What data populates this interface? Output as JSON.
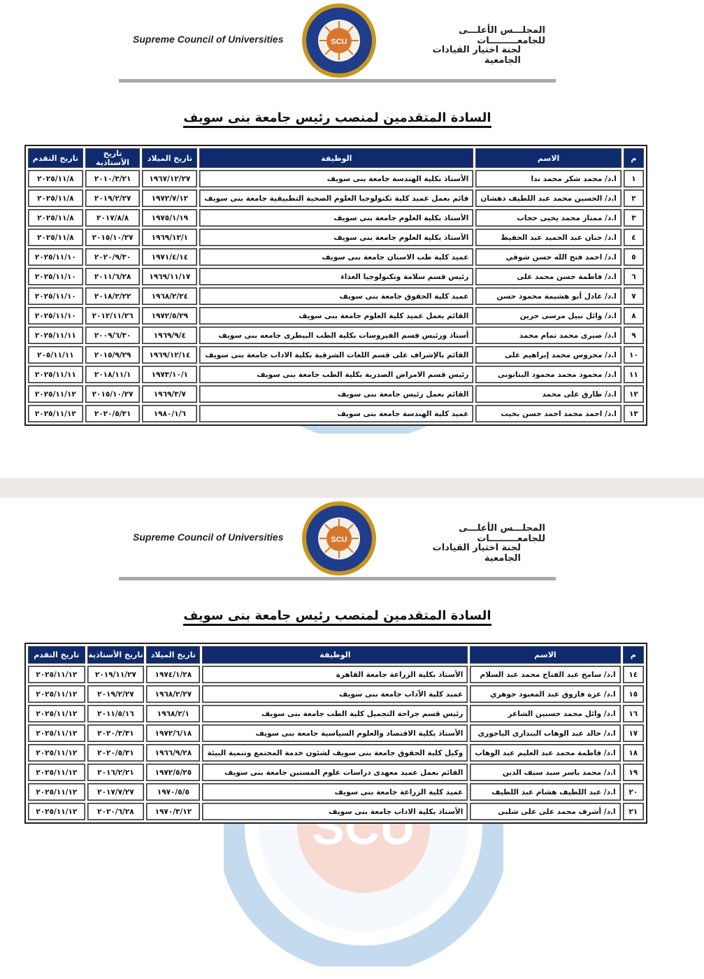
{
  "header": {
    "english_name": "Supreme Council of Universities",
    "arabic_name": "المجلـــس الأعلـــى للجامعـــــــــات",
    "committee": "لجنة اختيار القيادات الجامعية",
    "logo_text": "SCU"
  },
  "watermark_text": "SUPREME COUNCIL OF UNIVERSITIES",
  "title": "السادة المتقدمين لمنصب رئيس جامعة بنى سويف",
  "columns": {
    "num": "م",
    "name": "الاسم",
    "job": "الوظيفة",
    "birth": "تاريخ الميلاد",
    "professorship": "تاريخ الأستاذية",
    "applied": "تاريخ التقدم"
  },
  "colors": {
    "header_bg": "#0f2a6e",
    "logo_gold": "#c8961e",
    "watermark_blue": "#2f7fc8",
    "watermark_orange": "#e8643c"
  },
  "page1_rows": [
    {
      "num": "١",
      "name": "ا.د/ محمد شكر محمد ندا",
      "job": "الأستاذ بكلية الهندسة  جامعة بنى سويف",
      "birth": "١٩٦٧/١٢/٢٧",
      "professorship": "٢٠١٠/٣/٢١",
      "applied": "٢٠٢٥/١١/٨"
    },
    {
      "num": "٢",
      "name": "ا.د/ الحسين محمد عبد اللطيف دهشان",
      "job": "قائم بعمل عميد كلية تكنولوجيا العلوم الصحية التطبيقية جامعة بنى سويف",
      "birth": "١٩٧٢/٧/١٢",
      "professorship": "٢٠١٩/٢/٢٧",
      "applied": "٢٠٢٥/١١/٨"
    },
    {
      "num": "٣",
      "name": "ا.د/ ممتاز محمد يحيى حجاب",
      "job": "الأستاذ بكلية العلوم جامعة بنى سويف",
      "birth": "١٩٧٥/١/١٩",
      "professorship": "٢٠١٧/٨/٨",
      "applied": "٢٠٢٥/١١/٨"
    },
    {
      "num": "٤",
      "name": "ا.د/ حنان عبد الحميد عبد الحفيظ",
      "job": "الأستاذ بكلية العلوم جامعة بنى سويف",
      "birth": "١٩٦٩/١٢/١",
      "professorship": "٢٠١٥/١٠/٢٧",
      "applied": "٢٠٢٥/١١/٨"
    },
    {
      "num": "٥",
      "name": "ا.د/ احمد فتح الله حسن شوقي",
      "job": "عميد كلية طب الاسنان جامعة بنى سويف",
      "birth": "١٩٧١/٤/١٤",
      "professorship": "٢٠٢٠/٩/٣٠",
      "applied": "٢٠٢٥/١١/١٠"
    },
    {
      "num": "٦",
      "name": "ا.د/ فاطمة حسن محمد على",
      "job": "رئيس قسم سلامة وتكنولوجيا الغذاء",
      "birth": "١٩٦٩/١١/١٧",
      "professorship": "٢٠١١/٦/٢٨",
      "applied": "٢٠٢٥/١١/١٠"
    },
    {
      "num": "٧",
      "name": "ا.د/ عادل أبو هشيمة محمود حسن",
      "job": "عميد كلية الحقوق جامعة بنى سويف",
      "birth": "١٩٦٨/٢/٢٤",
      "professorship": "٢٠١٨/٢/٢٢",
      "applied": "٢٠٢٥/١١/١٠"
    },
    {
      "num": "٨",
      "name": "ا.د/ وائل نبيل مرسى حزين",
      "job": "القائم بعمل عميد كلية العلوم جامعة بنى سويف",
      "birth": "١٩٧٢/٥/٢٩",
      "professorship": "٢٠١٢/١١/٢٦",
      "applied": "٢٠٢٥/١١/١٠"
    },
    {
      "num": "٩",
      "name": "ا.د/ صبرى محمد تمام محمد",
      "job": "أستاذ ورئيس قسم الفيروسات بكلية الطب البيطرى جامعه بنى سويف",
      "birth": "١٩٦٩/٩/٤",
      "professorship": "٢٠٠٩/٦/٣٠",
      "applied": "٢٠٢٥/١١/١١"
    },
    {
      "num": "١٠",
      "name": "ا.د/ محروس محمد إبراهيم على",
      "job": "القائم بالإشراف على قسم اللغات الشرقية بكلية الاداب جامعة بنى سويف",
      "birth": "١٩٦٩/١٢/١٤",
      "professorship": "٢٠١٥/٩/٢٩",
      "applied": "٢٠٥/١١/١١"
    },
    {
      "num": "١١",
      "name": "ا.د/ محمود محمد محمود البتانونى",
      "job": "رئيس قسم الامراض الصدرية بكلية الطب جامعة بنى سويف",
      "birth": "١٩٧٣/١٠/١",
      "professorship": "٢٠١٨/١١/١",
      "applied": "٢٠٢٥/١١/١١"
    },
    {
      "num": "١٢",
      "name": "ا.د/ طارق على محمد",
      "job": "القائم بعمل رئيس جامعة بنى سويف",
      "birth": "١٩٦٩/٣/٧",
      "professorship": "٢٠١٥/١٠/٢٧",
      "applied": "٢٠٢٥/١١/١٢"
    },
    {
      "num": "١٣",
      "name": "ا.د/ احمد محمد احمد حسن بخيت",
      "job": "عميد كلية الهندسة جامعة بنى سويف",
      "birth": "١٩٨٠/١/٦",
      "professorship": "٢٠٢٠/٥/٣١",
      "applied": "٢٠٢٥/١١/١٢"
    }
  ],
  "page2_rows": [
    {
      "num": "١٤",
      "name": "ا.د/ سامح عبد الفتاح محمد عبد السلام",
      "job": "الأستاذ بكلية الزراعة جامعة القاهرة",
      "birth": "١٩٧٤/١/٢٨",
      "professorship": "٢٠١٩/١١/٢٧",
      "applied": "٢٠٢٥/١١/١٢"
    },
    {
      "num": "١٥",
      "name": "ا.د/ عزة فاروق عبد المعبود جوهري",
      "job": "عميد كلية الآداب جامعة بنى سويف",
      "birth": "١٩٦٨/٢/٢٧",
      "professorship": "٢٠١٩/٢/٢٧",
      "applied": "٢٠٢٥/١١/١٢"
    },
    {
      "num": "١٦",
      "name": "ا.د/ وائل محمد حسنين الشاعر",
      "job": "رئيس قسم جراحة التجميل كلية الطب جامعة بنى سويف",
      "birth": "١٩٦٨/٢/١",
      "professorship": "٢٠١١/٥/١٦",
      "applied": "٢٠٢٥/١١/١٢"
    },
    {
      "num": "١٧",
      "name": "ا.د/ خالد عبد الوهاب البندارى الباجورى",
      "job": "الأستاذ بكلية الاقتصاد والعلوم السياسية جامعة بنى سويف",
      "birth": "١٩٧٢/٦/١٨",
      "professorship": "٢٠٢٠/٣/٣١",
      "applied": "٢٠٢٥/١١/١٢"
    },
    {
      "num": "١٨",
      "name": "ا.د/ فاطمة محمد عبد العليم عبد الوهاب",
      "job": "وكيل كلية الحقوق جامعة بنى سويف لشئون خدمة المجتمع وتنمية البيئة",
      "birth": "١٩٦٦/٩/٢٨",
      "professorship": "٢٠٢٠/٥/٣١",
      "applied": "٢٠٢٥/١١/١٢"
    },
    {
      "num": "١٩",
      "name": "ا.د/ محمد ياسر سيد سيف الدين",
      "job": "القائم بعمل عميد معهدى دراسات علوم المسنين جامعة بنى سويف",
      "birth": "١٩٧٢/٥/٢٥",
      "professorship": "٢٠١٦/٢/٢١",
      "applied": "٢٠٢٥/١١/١٢"
    },
    {
      "num": "٢٠",
      "name": "ا.د/ عبد اللطيف هشام عبد اللطيف",
      "job": "عميد كلية الزراعة جامعة بنى سويف",
      "birth": "١٩٧٠/٥/٥",
      "professorship": "٢٠١٧/٧/٢٧",
      "applied": "٢٠٢٥/١١/١٢"
    },
    {
      "num": "٢١",
      "name": "ا.د/ أشرف محمد على على شلبى",
      "job": "الأستاذ بكلية الاداب جامعة بنى سويف",
      "birth": "١٩٧٠/٣/١٢",
      "professorship": "٢٠٢٠/٦/٢٨",
      "applied": "٢٠٢٥/١١/١٢"
    }
  ]
}
